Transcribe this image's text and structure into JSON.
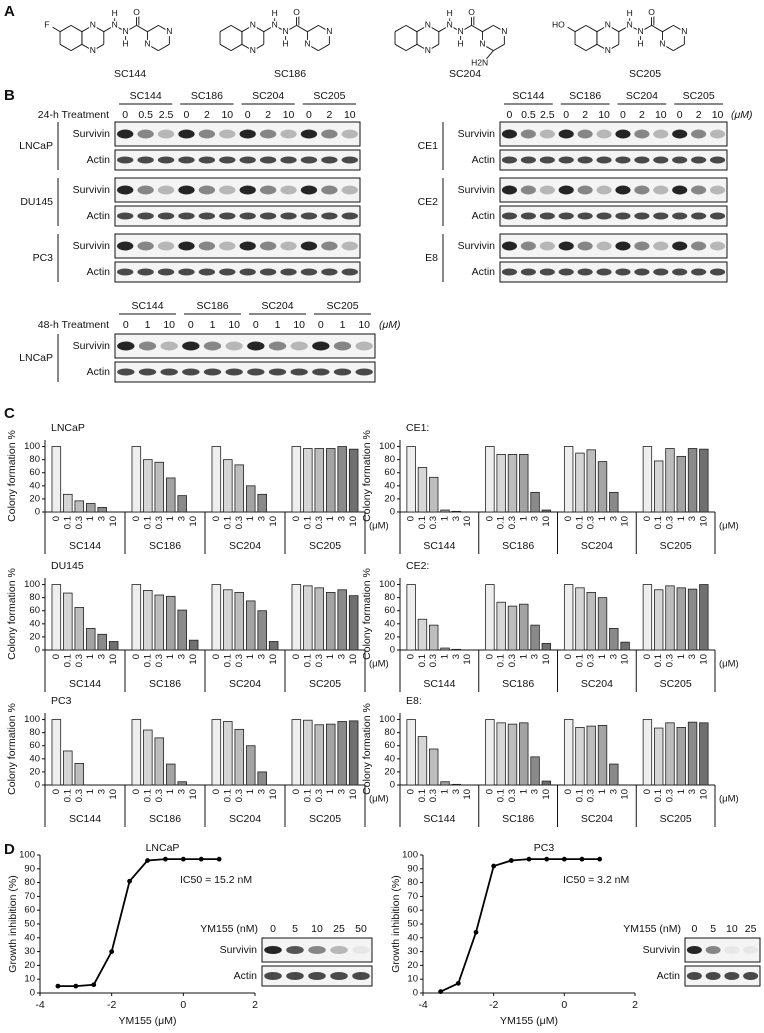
{
  "panel_labels": [
    "A",
    "B",
    "C",
    "D"
  ],
  "compounds": [
    {
      "name": "SC144",
      "atoms": [
        "N",
        "N",
        "H",
        "N",
        "N",
        "H",
        "O",
        "N",
        "N"
      ],
      "substituent": "F"
    },
    {
      "name": "SC186",
      "atoms": [
        "N",
        "N",
        "H",
        "N",
        "N",
        "H",
        "O",
        "N",
        "N"
      ]
    },
    {
      "name": "SC204",
      "atoms": [
        "N",
        "N",
        "H",
        "N",
        "N",
        "H",
        "O",
        "N",
        "N"
      ],
      "substituent": "H2N"
    },
    {
      "name": "SC205",
      "atoms": [
        "N",
        "N",
        "H",
        "N",
        "N",
        "H",
        "O",
        "N",
        "N"
      ],
      "substituent": "HO"
    }
  ],
  "blot_panels": [
    {
      "treatment": "24-h Treatment",
      "compounds": [
        {
          "name": "SC144",
          "doses": [
            "0",
            "0.5",
            "2.5"
          ]
        },
        {
          "name": "SC186",
          "doses": [
            "0",
            "2",
            "10"
          ]
        },
        {
          "name": "SC204",
          "doses": [
            "0",
            "2",
            "10"
          ]
        },
        {
          "name": "SC205",
          "doses": [
            "0",
            "2",
            "10"
          ]
        }
      ],
      "cell_lines": [
        {
          "name": "LNCaP",
          "rows": [
            "Survivin",
            "Actin"
          ]
        },
        {
          "name": "DU145",
          "rows": [
            "Survivin",
            "Actin"
          ]
        },
        {
          "name": "PC3",
          "rows": [
            "Survivin",
            "Actin"
          ]
        }
      ]
    },
    {
      "unit": "(μM)",
      "compounds": [
        {
          "name": "SC144",
          "doses": [
            "0",
            "0.5",
            "2.5"
          ]
        },
        {
          "name": "SC186",
          "doses": [
            "0",
            "2",
            "10"
          ]
        },
        {
          "name": "SC204",
          "doses": [
            "0",
            "2",
            "10"
          ]
        },
        {
          "name": "SC205",
          "doses": [
            "0",
            "2",
            "10"
          ]
        }
      ],
      "cell_lines": [
        {
          "name": "CE1",
          "rows": [
            "Survivin",
            "Actin"
          ]
        },
        {
          "name": "CE2",
          "rows": [
            "Survivin",
            "Actin"
          ]
        },
        {
          "name": "E8",
          "rows": [
            "Survivin",
            "Actin"
          ]
        }
      ]
    },
    {
      "treatment": "48-h Treatment",
      "unit": "(μM)",
      "compounds": [
        {
          "name": "SC144",
          "doses": [
            "0",
            "1",
            "10"
          ]
        },
        {
          "name": "SC186",
          "doses": [
            "0",
            "1",
            "10"
          ]
        },
        {
          "name": "SC204",
          "doses": [
            "0",
            "1",
            "10"
          ]
        },
        {
          "name": "SC205",
          "doses": [
            "0",
            "1",
            "10"
          ]
        }
      ],
      "cell_lines": [
        {
          "name": "LNCaP",
          "rows": [
            "Survivin",
            "Actin"
          ]
        }
      ]
    }
  ],
  "chart_data": [
    {
      "type": "bar",
      "title": "LNCaP",
      "ylabel": "Colony formation %",
      "unit": "(μM)",
      "categories": [
        "0",
        "0.1",
        "0.3",
        "1",
        "3",
        "10"
      ],
      "bar_colors": [
        "#eeeeee",
        "#d6d6d6",
        "#bdbdbd",
        "#a3a3a3",
        "#8a8a8a",
        "#707070"
      ],
      "series": [
        {
          "name": "SC144",
          "values": [
            100,
            27,
            17,
            13,
            7,
            0
          ]
        },
        {
          "name": "SC186",
          "values": [
            100,
            80,
            76,
            52,
            25,
            0
          ]
        },
        {
          "name": "SC204",
          "values": [
            100,
            80,
            72,
            40,
            27,
            0
          ]
        },
        {
          "name": "SC205",
          "values": [
            100,
            97,
            97,
            97,
            100,
            96
          ]
        }
      ],
      "ylim": [
        0,
        110
      ],
      "yticks": [
        0,
        20,
        40,
        60,
        80,
        100
      ]
    },
    {
      "type": "bar",
      "title": "CE1:",
      "ylabel": "Colony formation %",
      "unit": "(μM)",
      "categories": [
        "0",
        "0.1",
        "0.3",
        "1",
        "3",
        "10"
      ],
      "bar_colors": [
        "#eeeeee",
        "#d6d6d6",
        "#bdbdbd",
        "#a3a3a3",
        "#8a8a8a",
        "#707070"
      ],
      "series": [
        {
          "name": "SC144",
          "values": [
            100,
            68,
            53,
            3,
            1,
            0
          ]
        },
        {
          "name": "SC186",
          "values": [
            100,
            88,
            88,
            88,
            30,
            3
          ]
        },
        {
          "name": "SC204",
          "values": [
            100,
            90,
            95,
            77,
            30,
            0
          ]
        },
        {
          "name": "SC205",
          "values": [
            100,
            78,
            97,
            85,
            97,
            96
          ]
        }
      ],
      "ylim": [
        0,
        110
      ],
      "yticks": [
        0,
        20,
        40,
        60,
        80,
        100
      ]
    },
    {
      "type": "bar",
      "title": "DU145",
      "ylabel": "Colony formation %",
      "unit": "(μM)",
      "categories": [
        "0",
        "0.1",
        "0.3",
        "1",
        "3",
        "10"
      ],
      "bar_colors": [
        "#eeeeee",
        "#d6d6d6",
        "#bdbdbd",
        "#a3a3a3",
        "#8a8a8a",
        "#707070"
      ],
      "series": [
        {
          "name": "SC144",
          "values": [
            100,
            87,
            65,
            33,
            24,
            13
          ]
        },
        {
          "name": "SC186",
          "values": [
            100,
            91,
            84,
            82,
            61,
            15
          ]
        },
        {
          "name": "SC204",
          "values": [
            100,
            92,
            88,
            75,
            60,
            13
          ]
        },
        {
          "name": "SC205",
          "values": [
            100,
            98,
            95,
            88,
            92,
            83
          ]
        }
      ],
      "ylim": [
        0,
        110
      ],
      "yticks": [
        0,
        20,
        40,
        60,
        80,
        100
      ]
    },
    {
      "type": "bar",
      "title": "CE2:",
      "ylabel": "Colony formation %",
      "unit": "(μM)",
      "categories": [
        "0",
        "0.1",
        "0.3",
        "1",
        "3",
        "10"
      ],
      "bar_colors": [
        "#eeeeee",
        "#d6d6d6",
        "#bdbdbd",
        "#a3a3a3",
        "#8a8a8a",
        "#707070"
      ],
      "series": [
        {
          "name": "SC144",
          "values": [
            100,
            47,
            38,
            3,
            1,
            0
          ]
        },
        {
          "name": "SC186",
          "values": [
            100,
            73,
            67,
            70,
            38,
            10
          ]
        },
        {
          "name": "SC204",
          "values": [
            100,
            95,
            88,
            80,
            33,
            12
          ]
        },
        {
          "name": "SC205",
          "values": [
            100,
            92,
            98,
            95,
            93,
            100
          ]
        }
      ],
      "ylim": [
        0,
        110
      ],
      "yticks": [
        0,
        20,
        40,
        60,
        80,
        100
      ]
    },
    {
      "type": "bar",
      "title": "PC3",
      "ylabel": "Colony formation %",
      "unit": "(μM)",
      "categories": [
        "0",
        "0.1",
        "0.3",
        "1",
        "3",
        "10"
      ],
      "bar_colors": [
        "#eeeeee",
        "#d6d6d6",
        "#bdbdbd",
        "#a3a3a3",
        "#8a8a8a",
        "#707070"
      ],
      "series": [
        {
          "name": "SC144",
          "values": [
            100,
            52,
            33,
            0,
            0,
            0
          ]
        },
        {
          "name": "SC186",
          "values": [
            100,
            84,
            72,
            32,
            5,
            0
          ]
        },
        {
          "name": "SC204",
          "values": [
            100,
            97,
            85,
            60,
            20,
            0
          ]
        },
        {
          "name": "SC205",
          "values": [
            100,
            99,
            92,
            93,
            97,
            98
          ]
        }
      ],
      "ylim": [
        0,
        110
      ],
      "yticks": [
        0,
        20,
        40,
        60,
        80,
        100
      ]
    },
    {
      "type": "bar",
      "title": "E8:",
      "ylabel": "Colony formation %",
      "unit": "(μM)",
      "categories": [
        "0",
        "0.1",
        "0.3",
        "1",
        "3",
        "10"
      ],
      "bar_colors": [
        "#eeeeee",
        "#d6d6d6",
        "#bdbdbd",
        "#a3a3a3",
        "#8a8a8a",
        "#707070"
      ],
      "series": [
        {
          "name": "SC144",
          "values": [
            100,
            74,
            55,
            5,
            1,
            0
          ]
        },
        {
          "name": "SC186",
          "values": [
            100,
            95,
            93,
            95,
            43,
            6
          ]
        },
        {
          "name": "SC204",
          "values": [
            100,
            88,
            90,
            91,
            32,
            0
          ]
        },
        {
          "name": "SC205",
          "values": [
            100,
            87,
            95,
            88,
            96,
            95
          ]
        }
      ],
      "ylim": [
        0,
        110
      ],
      "yticks": [
        0,
        20,
        40,
        60,
        80,
        100
      ]
    },
    {
      "type": "line",
      "title": "LNCaP",
      "annotation": "IC50 = 15.2 nM",
      "xlabel": "YM155 (μM)",
      "ylabel": "Growth inhibition (%)",
      "x": [
        -3.5,
        -3,
        -2.5,
        -2,
        -1.5,
        -1,
        -0.5,
        0,
        0.5,
        1
      ],
      "values": [
        5,
        5,
        6,
        30,
        81,
        96,
        97,
        97,
        97,
        97
      ],
      "color": "#000000",
      "xlim": [
        -4,
        2
      ],
      "xticks": [
        -4,
        -2,
        0,
        2
      ],
      "ylim": [
        0,
        100
      ],
      "yticks": [
        0,
        10,
        20,
        30,
        40,
        50,
        60,
        70,
        80,
        90,
        100
      ],
      "inset": {
        "label": "YM155 (nM)",
        "lanes": [
          "0",
          "5",
          "10",
          "25",
          "50"
        ],
        "rows": [
          "Survivin",
          "Actin"
        ]
      }
    },
    {
      "type": "line",
      "title": "PC3",
      "annotation": "IC50 = 3.2 nM",
      "xlabel": "YM155 (μM)",
      "ylabel": "Growth inhibition (%)",
      "x": [
        -3.5,
        -3,
        -2.5,
        -2,
        -1.5,
        -1,
        -0.5,
        0,
        0.5,
        1
      ],
      "values": [
        1,
        7,
        44,
        92,
        96,
        97,
        97,
        97,
        97,
        97
      ],
      "color": "#000000",
      "xlim": [
        -4,
        2
      ],
      "xticks": [
        -4,
        -2,
        0,
        2
      ],
      "ylim": [
        0,
        100
      ],
      "yticks": [
        0,
        10,
        20,
        30,
        40,
        50,
        60,
        70,
        80,
        90,
        100
      ],
      "inset": {
        "label": "YM155 (nM)",
        "lanes": [
          "0",
          "5",
          "10",
          "25"
        ],
        "rows": [
          "Survivin",
          "Actin"
        ]
      }
    }
  ]
}
